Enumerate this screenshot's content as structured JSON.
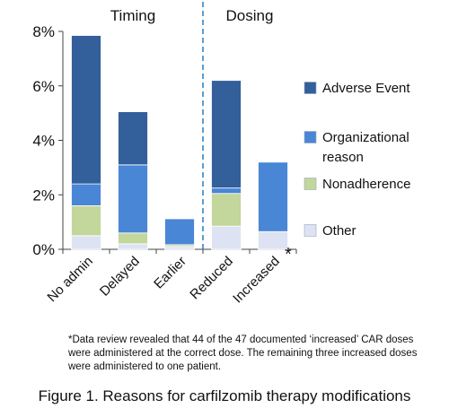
{
  "chart_data": {
    "type": "bar",
    "stacked": true,
    "categories": [
      "No admin",
      "Delayed",
      "Earlier",
      "Reduced",
      "Increased"
    ],
    "category_marks": [
      "",
      "",
      "",
      "",
      "*"
    ],
    "sections": [
      {
        "label": "Timing",
        "categories": [
          "No admin",
          "Delayed",
          "Earlier"
        ]
      },
      {
        "label": "Dosing",
        "categories": [
          "Reduced",
          "Increased"
        ]
      }
    ],
    "section_divider": "dashed vertical line between Earlier and Reduced",
    "series": [
      {
        "name": "Other",
        "color": "#dde3f2",
        "values": [
          0.5,
          0.2,
          0.1,
          0.85,
          0.65
        ]
      },
      {
        "name": "Nonadherence",
        "color": "#c3d69b",
        "values": [
          1.1,
          0.4,
          0.07,
          1.2,
          0.0
        ]
      },
      {
        "name": "Organizational reason",
        "color": "#4a86d6",
        "values": [
          0.8,
          2.5,
          0.95,
          0.2,
          2.55
        ]
      },
      {
        "name": "Adverse Event",
        "color": "#335f9a",
        "values": [
          5.45,
          1.95,
          0.0,
          3.95,
          0.0
        ]
      }
    ],
    "legend_order": [
      "Adverse Event",
      "Organizational reason",
      "Nonadherence",
      "Other"
    ],
    "legend_placement": "right",
    "ylim": [
      0,
      8
    ],
    "yticks": [
      0,
      2,
      4,
      6,
      8
    ],
    "ytick_labels": [
      "0%",
      "2%",
      "4%",
      "6%",
      "8%"
    ],
    "grid": false,
    "divider_color": "#2e86c8",
    "xlabel": "",
    "ylabel": ""
  },
  "footnote": "*Data review revealed that 44 of the 47 documented ‘increased’ CAR doses were administered at the correct dose. The remaining three increased doses were administered to one patient.",
  "caption": "Figure 1. Reasons for carfilzomib therapy modifications"
}
